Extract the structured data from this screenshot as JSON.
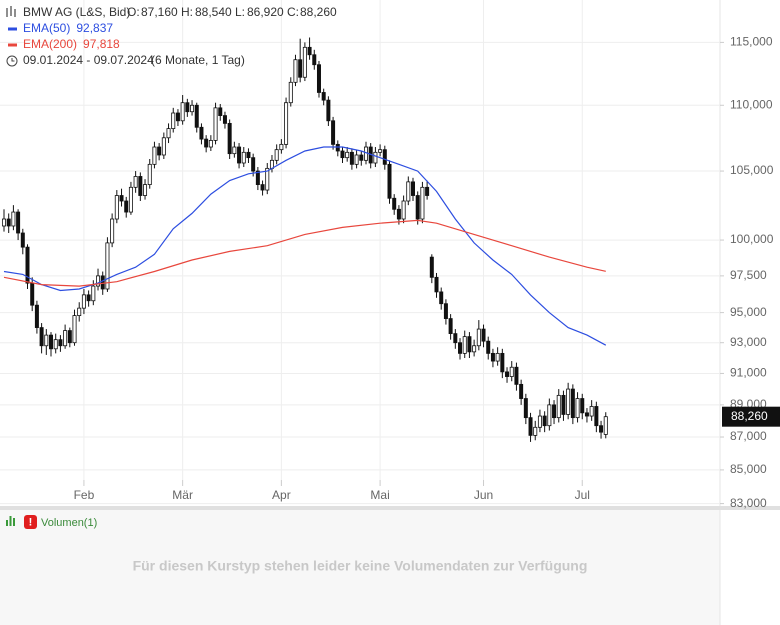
{
  "header": {
    "title": "BMW AG (L&S, Bid)",
    "ohlc": [
      {
        "label": "O:",
        "value": "87,160"
      },
      {
        "label": "H:",
        "value": "88,540"
      },
      {
        "label": "L:",
        "value": "86,920"
      },
      {
        "label": "C:",
        "value": "88,260"
      }
    ],
    "date_range": "09.01.2024 - 09.07.2024",
    "period": "(6 Monate, 1 Tag)"
  },
  "chart_data": {
    "type": "candlestick",
    "candles": [
      [
        101.0,
        102.2,
        100.6,
        101.5
      ],
      [
        101.5,
        101.9,
        100.5,
        101.0
      ],
      [
        101.0,
        102.5,
        100.7,
        102.0
      ],
      [
        102.0,
        102.2,
        100.0,
        100.5
      ],
      [
        100.5,
        100.8,
        99.0,
        99.5
      ],
      [
        99.5,
        99.7,
        96.6,
        97.0
      ],
      [
        97.0,
        97.4,
        95.1,
        95.5
      ],
      [
        95.5,
        95.8,
        93.6,
        94.0
      ],
      [
        94.0,
        94.3,
        92.3,
        92.8
      ],
      [
        92.8,
        93.9,
        92.2,
        93.5
      ],
      [
        93.5,
        93.7,
        92.1,
        92.6
      ],
      [
        92.6,
        93.6,
        92.3,
        93.2
      ],
      [
        93.2,
        93.5,
        92.4,
        92.8
      ],
      [
        92.8,
        94.2,
        92.6,
        93.8
      ],
      [
        93.8,
        94.0,
        92.7,
        93.0
      ],
      [
        93.0,
        95.2,
        92.8,
        94.8
      ],
      [
        94.8,
        95.7,
        94.4,
        95.3
      ],
      [
        95.3,
        96.6,
        94.9,
        96.2
      ],
      [
        96.2,
        96.5,
        95.4,
        95.8
      ],
      [
        95.8,
        97.2,
        95.5,
        96.8
      ],
      [
        96.8,
        98.0,
        96.5,
        97.5
      ],
      [
        97.5,
        97.8,
        96.2,
        96.6
      ],
      [
        96.6,
        100.2,
        96.4,
        99.8
      ],
      [
        99.8,
        101.9,
        99.5,
        101.5
      ],
      [
        101.5,
        103.6,
        101.2,
        103.2
      ],
      [
        103.2,
        103.7,
        102.4,
        102.8
      ],
      [
        102.8,
        103.1,
        101.6,
        102.0
      ],
      [
        102.0,
        104.2,
        101.8,
        103.8
      ],
      [
        103.8,
        105.0,
        103.4,
        104.6
      ],
      [
        104.6,
        104.9,
        102.8,
        103.2
      ],
      [
        103.2,
        104.4,
        102.9,
        104.0
      ],
      [
        104.0,
        105.9,
        103.7,
        105.5
      ],
      [
        105.5,
        107.2,
        105.2,
        106.8
      ],
      [
        106.8,
        107.1,
        105.8,
        106.2
      ],
      [
        106.2,
        107.9,
        105.9,
        107.5
      ],
      [
        107.5,
        108.6,
        107.1,
        108.2
      ],
      [
        108.2,
        109.8,
        107.9,
        109.4
      ],
      [
        109.4,
        109.7,
        108.4,
        108.8
      ],
      [
        108.8,
        110.8,
        108.5,
        110.2
      ],
      [
        110.2,
        110.5,
        109.1,
        109.5
      ],
      [
        109.5,
        110.4,
        109.2,
        110.0
      ],
      [
        110.0,
        110.2,
        107.9,
        108.3
      ],
      [
        108.3,
        108.6,
        107.0,
        107.4
      ],
      [
        107.4,
        107.7,
        106.4,
        106.8
      ],
      [
        106.8,
        107.7,
        106.5,
        107.3
      ],
      [
        107.3,
        110.2,
        107.0,
        109.8
      ],
      [
        109.8,
        110.1,
        108.8,
        109.2
      ],
      [
        109.2,
        109.5,
        108.2,
        108.6
      ],
      [
        108.6,
        108.9,
        105.9,
        106.3
      ],
      [
        106.3,
        107.2,
        106.0,
        106.8
      ],
      [
        106.8,
        107.1,
        105.2,
        105.6
      ],
      [
        105.6,
        106.8,
        105.3,
        106.4
      ],
      [
        106.4,
        106.7,
        105.6,
        106.0
      ],
      [
        106.0,
        106.3,
        104.6,
        105.0
      ],
      [
        105.0,
        105.3,
        103.6,
        104.0
      ],
      [
        104.0,
        104.3,
        103.2,
        103.6
      ],
      [
        103.6,
        105.6,
        103.3,
        105.2
      ],
      [
        105.2,
        106.2,
        104.9,
        105.8
      ],
      [
        105.8,
        107.0,
        105.5,
        106.6
      ],
      [
        106.6,
        107.4,
        106.3,
        107.0
      ],
      [
        107.0,
        110.6,
        106.7,
        110.2
      ],
      [
        110.2,
        112.2,
        109.9,
        111.8
      ],
      [
        111.8,
        114.0,
        111.5,
        113.6
      ],
      [
        113.6,
        115.3,
        111.8,
        112.2
      ],
      [
        112.2,
        115.0,
        111.9,
        114.6
      ],
      [
        114.6,
        115.4,
        113.6,
        114.0
      ],
      [
        114.0,
        114.4,
        112.8,
        113.2
      ],
      [
        113.2,
        113.5,
        110.6,
        111.0
      ],
      [
        111.0,
        111.3,
        110.0,
        110.4
      ],
      [
        110.4,
        110.7,
        108.4,
        108.8
      ],
      [
        108.8,
        109.1,
        106.6,
        107.0
      ],
      [
        107.0,
        107.3,
        106.1,
        106.5
      ],
      [
        106.5,
        106.8,
        105.6,
        106.0
      ],
      [
        106.0,
        106.8,
        105.7,
        106.4
      ],
      [
        106.4,
        106.7,
        105.1,
        105.5
      ],
      [
        105.5,
        106.6,
        105.2,
        106.2
      ],
      [
        106.2,
        106.5,
        105.4,
        105.8
      ],
      [
        105.8,
        107.2,
        105.5,
        106.8
      ],
      [
        106.8,
        107.1,
        105.2,
        105.6
      ],
      [
        105.6,
        106.8,
        105.3,
        106.4
      ],
      [
        106.4,
        107.0,
        106.1,
        106.6
      ],
      [
        106.6,
        106.9,
        105.1,
        105.5
      ],
      [
        105.5,
        105.8,
        102.6,
        103.0
      ],
      [
        103.0,
        103.3,
        101.8,
        102.2
      ],
      [
        102.2,
        102.5,
        101.1,
        101.5
      ],
      [
        101.5,
        103.2,
        101.2,
        102.8
      ],
      [
        102.8,
        104.6,
        102.5,
        104.2
      ],
      [
        104.2,
        104.5,
        102.8,
        103.2
      ],
      [
        103.2,
        103.5,
        101.1,
        101.5
      ],
      [
        101.5,
        104.2,
        101.2,
        103.8
      ],
      [
        103.8,
        104.3,
        102.9,
        103.2
      ],
      [
        98.8,
        99.0,
        97.0,
        97.4
      ],
      [
        97.4,
        97.7,
        96.0,
        96.4
      ],
      [
        96.4,
        96.7,
        95.2,
        95.6
      ],
      [
        95.6,
        95.9,
        94.2,
        94.6
      ],
      [
        94.6,
        94.9,
        93.2,
        93.6
      ],
      [
        93.6,
        93.9,
        92.6,
        93.0
      ],
      [
        93.0,
        93.3,
        91.9,
        92.3
      ],
      [
        92.3,
        93.8,
        92.0,
        93.4
      ],
      [
        93.4,
        93.7,
        92.0,
        92.4
      ],
      [
        92.4,
        93.2,
        92.1,
        92.8
      ],
      [
        92.8,
        94.5,
        92.5,
        93.9
      ],
      [
        93.9,
        94.2,
        92.7,
        93.1
      ],
      [
        93.1,
        93.4,
        91.9,
        92.3
      ],
      [
        92.3,
        92.6,
        91.4,
        91.8
      ],
      [
        91.8,
        92.7,
        91.5,
        92.3
      ],
      [
        92.3,
        92.6,
        90.7,
        91.1
      ],
      [
        91.1,
        91.4,
        90.4,
        90.8
      ],
      [
        90.8,
        91.8,
        90.5,
        91.4
      ],
      [
        91.4,
        91.7,
        89.9,
        90.3
      ],
      [
        90.3,
        90.6,
        89.0,
        89.4
      ],
      [
        89.4,
        89.7,
        87.8,
        88.2
      ],
      [
        88.2,
        88.5,
        86.7,
        87.1
      ],
      [
        87.1,
        88.0,
        86.8,
        87.6
      ],
      [
        87.6,
        88.7,
        87.3,
        88.3
      ],
      [
        88.3,
        88.6,
        87.3,
        87.7
      ],
      [
        87.7,
        89.4,
        87.4,
        89.0
      ],
      [
        89.0,
        89.3,
        87.8,
        88.2
      ],
      [
        88.2,
        90.0,
        87.9,
        89.6
      ],
      [
        89.6,
        89.9,
        88.0,
        88.4
      ],
      [
        88.4,
        90.4,
        88.1,
        90.0
      ],
      [
        90.0,
        90.3,
        87.8,
        88.2
      ],
      [
        88.2,
        89.8,
        87.9,
        89.4
      ],
      [
        89.4,
        89.7,
        88.1,
        88.5
      ],
      [
        88.5,
        88.8,
        87.9,
        88.3
      ],
      [
        88.3,
        89.3,
        88.0,
        88.9
      ],
      [
        88.9,
        89.2,
        87.3,
        87.7
      ],
      [
        87.7,
        88.0,
        86.9,
        87.3
      ],
      [
        87.16,
        88.54,
        86.92,
        88.26
      ]
    ],
    "series": [
      {
        "name": "EMA(50)",
        "value_label": "92,837",
        "color": "#2d4ee0",
        "x": [
          0,
          4,
          8,
          12,
          16,
          20,
          24,
          28,
          32,
          36,
          40,
          44,
          48,
          52,
          56,
          60,
          64,
          68,
          72,
          76,
          80,
          84,
          88,
          92,
          96,
          100,
          104,
          108,
          112,
          116,
          120,
          124,
          128
        ],
        "values": [
          97.8,
          97.6,
          96.9,
          96.5,
          96.6,
          97.0,
          97.6,
          98.1,
          99.0,
          100.8,
          101.9,
          103.3,
          104.3,
          104.8,
          105.0,
          105.8,
          106.5,
          106.8,
          106.8,
          106.5,
          106.0,
          105.5,
          105.0,
          103.5,
          101.5,
          99.8,
          98.6,
          97.6,
          96.2,
          95.0,
          94.0,
          93.5,
          92.837
        ]
      },
      {
        "name": "EMA(200)",
        "value_label": "97,818",
        "color": "#e8473d",
        "x": [
          0,
          8,
          16,
          24,
          32,
          40,
          48,
          56,
          64,
          72,
          80,
          88,
          92,
          100,
          108,
          116,
          124,
          128
        ],
        "values": [
          97.4,
          96.9,
          96.8,
          97.1,
          97.8,
          98.6,
          99.2,
          99.6,
          100.4,
          100.9,
          101.2,
          101.4,
          101.2,
          100.4,
          99.6,
          98.8,
          98.1,
          97.818
        ]
      }
    ],
    "xlim": [
      -0.85,
      152.3
    ],
    "xticks": [
      {
        "value": 17,
        "label": "Feb"
      },
      {
        "value": 38,
        "label": "Mär"
      },
      {
        "value": 59,
        "label": "Apr"
      },
      {
        "value": 80,
        "label": "Mai"
      },
      {
        "value": 102,
        "label": "Jun"
      },
      {
        "value": 123,
        "label": "Jul"
      }
    ],
    "ylim": [
      82.8,
      118.5
    ],
    "log_scale": true,
    "yticks": [
      {
        "value": 115,
        "label": "115,000"
      },
      {
        "value": 110,
        "label": "110,000"
      },
      {
        "value": 105,
        "label": "105,000"
      },
      {
        "value": 100,
        "label": "100,000"
      },
      {
        "value": 97.5,
        "label": "97,500"
      },
      {
        "value": 95,
        "label": "95,000"
      },
      {
        "value": 93,
        "label": "93,000"
      },
      {
        "value": 91,
        "label": "91,000"
      },
      {
        "value": 89,
        "label": "89,000"
      },
      {
        "value": 87,
        "label": "87,000"
      },
      {
        "value": 85,
        "label": "85,000"
      },
      {
        "value": 83,
        "label": "83,000"
      }
    ],
    "grid": true,
    "last_price": {
      "value": 88.26,
      "label": "88,260"
    }
  },
  "volume_panel": {
    "label": "Volumen(1)",
    "message": "Für diesen Kurstyp stehen leider keine Volumendaten zur Verfügung"
  }
}
